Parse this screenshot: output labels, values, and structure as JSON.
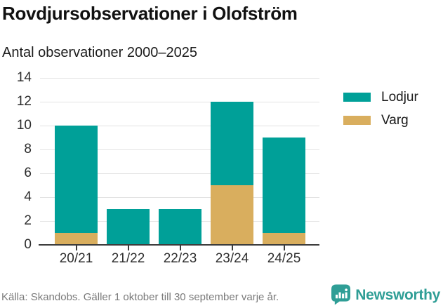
{
  "header": {
    "title": "Rovdjursobservationer i Olofström",
    "subtitle": "Antal observationer 2000–2025"
  },
  "chart_data": {
    "type": "bar",
    "stacked": true,
    "title": "Rovdjursobservationer i Olofström",
    "subtitle": "Antal observationer 2000–2025",
    "categories": [
      "20/21",
      "21/22",
      "22/23",
      "23/24",
      "24/25"
    ],
    "series": [
      {
        "name": "Varg",
        "values": [
          1,
          0,
          0,
          5,
          1
        ],
        "color": "#d9ae5e"
      },
      {
        "name": "Lodjur",
        "values": [
          9,
          3,
          3,
          7,
          8
        ],
        "color": "#00a098"
      }
    ],
    "totals": [
      10,
      3,
      3,
      12,
      9
    ],
    "xlabel": "",
    "ylabel": "",
    "ylim": [
      0,
      14
    ],
    "yticks": [
      0,
      2,
      4,
      6,
      8,
      10,
      12,
      14
    ],
    "grid": true,
    "legend": [
      "Lodjur",
      "Varg"
    ],
    "legend_position": "right"
  },
  "colors": {
    "lodjur": "#00a098",
    "varg": "#d9ae5e",
    "gridline": "#e3e3e3",
    "axis": "#3c3c3c",
    "brand_teal": "#2f9e96"
  },
  "footer": {
    "source": "Källa: Skandobs. Gäller 1 oktober till 30 september varje år."
  },
  "branding": {
    "wordmark": "Newsworthy",
    "logo_icon": "newsworthy-speech-bubble-bar-chart-icon"
  }
}
